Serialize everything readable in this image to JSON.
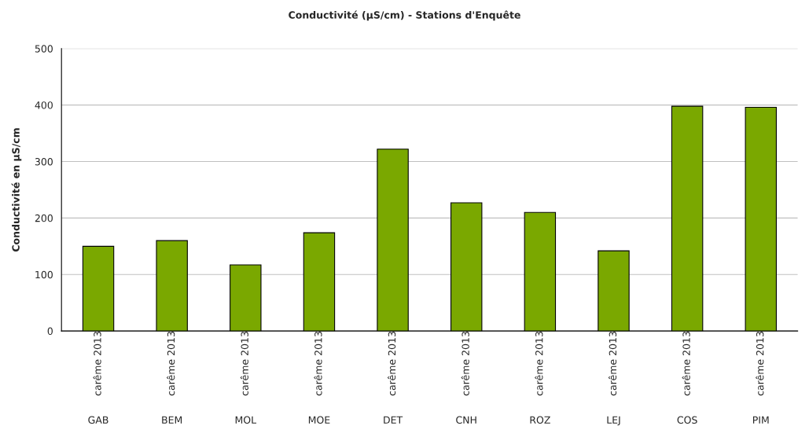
{
  "chart_data": {
    "type": "bar",
    "title": "Conductivité (µS/cm) - Stations d'Enquête",
    "ylabel": "Conductivité en µS/cm",
    "categories": [
      "carême 2013\nGAB",
      "carême 2013\nBEM",
      "carême 2013\nMOL",
      "carême 2013\nMOE",
      "carême 2013\nDET",
      "carême 2013\nCNH",
      "carême 2013\nROZ",
      "carême 2013\nLEJ",
      "carême 2013\nCOS",
      "carême 2013\nPIM"
    ],
    "values": [
      150,
      160,
      117,
      174,
      322,
      227,
      210,
      142,
      398,
      396
    ],
    "color": "#7aa800",
    "ylim": [
      0,
      500
    ],
    "yticks": [
      0,
      100,
      200,
      300,
      400,
      500
    ],
    "grid": "y",
    "legend": false
  }
}
